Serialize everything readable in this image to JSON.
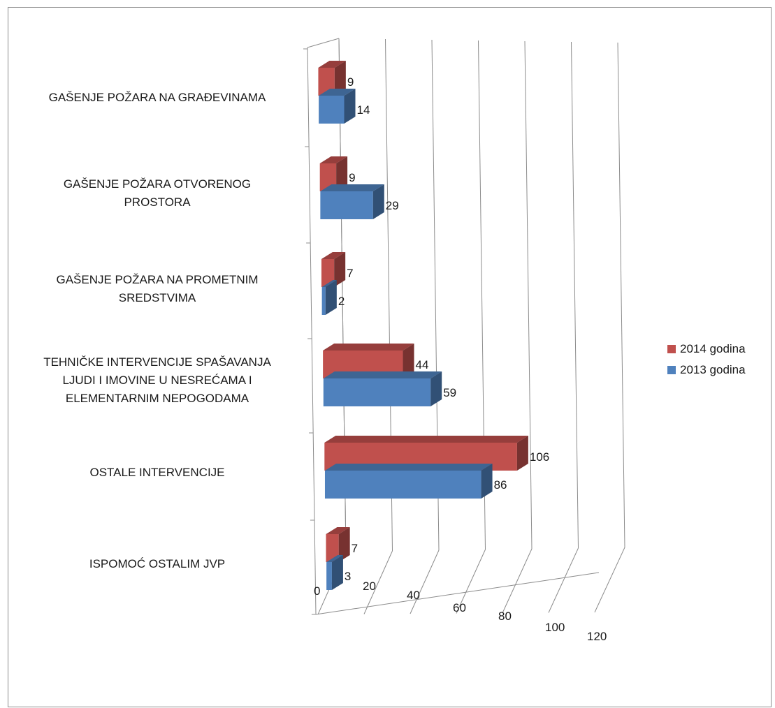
{
  "chart_data": {
    "type": "bar",
    "orientation": "horizontal",
    "style": "3d-clustered",
    "categories": [
      "GAŠENJE POŽARA NA GRAĐEVINAMA",
      "GAŠENJE POŽARA OTVORENOG PROSTORA",
      "GAŠENJE POŽARA NA PROMETNIM SREDSTVIMA",
      "TEHNIČKE INTERVENCIJE SPAŠAVANJA LJUDI I IMOVINE U NESREĆAMA I ELEMENTARNIM NEPOGODAMA",
      "OSTALE INTERVENCIJE",
      "ISPOMOĆ OSTALIM JVP"
    ],
    "category_lines": [
      [
        "GAŠENJE POŽARA NA GRAĐEVINAMA"
      ],
      [
        "GAŠENJE POŽARA OTVORENOG",
        "PROSTORA"
      ],
      [
        "GAŠENJE POŽARA NA PROMETNIM",
        "SREDSTVIMA"
      ],
      [
        "TEHNIČKE INTERVENCIJE SPAŠAVANJA",
        "LJUDI I IMOVINE U NESREĆAMA I",
        "ELEMENTARNIM NEPOGODAMA"
      ],
      [
        "OSTALE INTERVENCIJE"
      ],
      [
        "ISPOMOĆ OSTALIM JVP"
      ]
    ],
    "series": [
      {
        "name": "2014 godina",
        "values": [
          9,
          9,
          7,
          44,
          106,
          7
        ],
        "color": "#c0504d"
      },
      {
        "name": "2013 godina",
        "values": [
          14,
          29,
          2,
          59,
          86,
          3
        ],
        "color": "#4f81bd"
      }
    ],
    "xlim": [
      0,
      120
    ],
    "x_ticks": [
      "0",
      "20",
      "40",
      "60",
      "80",
      "100",
      "120"
    ],
    "grid": true,
    "legend": "right",
    "data_labels": true
  }
}
